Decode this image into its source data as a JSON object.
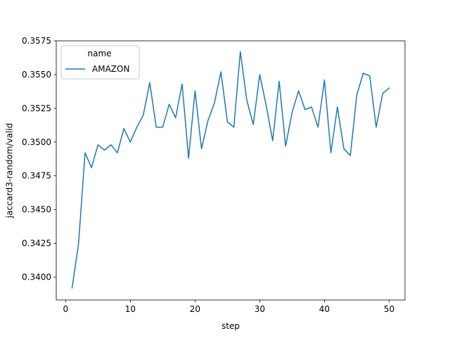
{
  "chart_data": {
    "type": "line",
    "xlabel": "step",
    "ylabel": "jaccard3-random/valid",
    "xlim": [
      -1.45,
      52.45
    ],
    "ylim": [
      0.3383,
      0.3575
    ],
    "xticks": [
      0,
      10,
      20,
      30,
      40,
      50
    ],
    "yticks": [
      0.34,
      0.3425,
      0.345,
      0.3475,
      0.35,
      0.3525,
      0.355,
      0.3575
    ],
    "ytick_labels": [
      "0.3400",
      "0.3425",
      "0.3450",
      "0.3475",
      "0.3500",
      "0.3525",
      "0.3550",
      "0.3575"
    ],
    "grid": false,
    "legend": {
      "title": "name",
      "placement": "upper left"
    },
    "series": [
      {
        "name": "AMAZON",
        "color": "#1f77b4",
        "x": [
          1,
          2,
          3,
          4,
          5,
          6,
          7,
          8,
          9,
          10,
          11,
          12,
          13,
          14,
          15,
          16,
          17,
          18,
          19,
          20,
          21,
          22,
          23,
          24,
          25,
          26,
          27,
          28,
          29,
          30,
          31,
          32,
          33,
          34,
          35,
          36,
          37,
          38,
          39,
          40,
          41,
          42,
          43,
          44,
          45,
          46,
          47,
          48,
          49,
          50
        ],
        "values": [
          0.3392,
          0.3425,
          0.3492,
          0.3481,
          0.3498,
          0.3494,
          0.3498,
          0.3492,
          0.351,
          0.35,
          0.3511,
          0.352,
          0.3544,
          0.3511,
          0.3511,
          0.3528,
          0.3518,
          0.3543,
          0.3488,
          0.3538,
          0.3495,
          0.3516,
          0.3529,
          0.3552,
          0.3515,
          0.3511,
          0.3567,
          0.3531,
          0.3513,
          0.355,
          0.3527,
          0.3501,
          0.3545,
          0.3497,
          0.3522,
          0.3538,
          0.3524,
          0.3526,
          0.3511,
          0.3546,
          0.3492,
          0.3526,
          0.3495,
          0.349,
          0.3535,
          0.3551,
          0.3549,
          0.3511,
          0.3536,
          0.354
        ]
      }
    ]
  }
}
